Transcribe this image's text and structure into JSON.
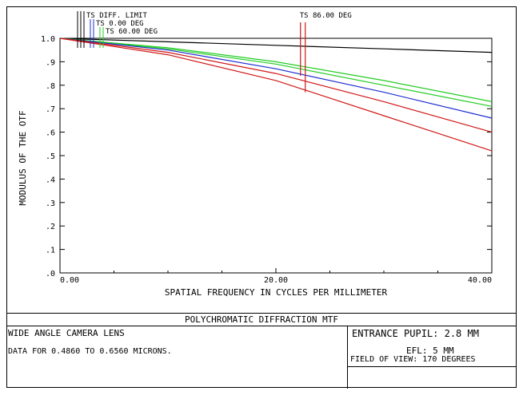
{
  "chart_data": {
    "type": "line",
    "xlabel": "SPATIAL FREQUENCY IN CYCLES PER MILLIMETER",
    "ylabel": "MODULUS OF THE OTF",
    "xlim": [
      0,
      40
    ],
    "ylim": [
      0,
      1.0
    ],
    "x_ticks": [
      "0.00",
      "20.00",
      "40.00"
    ],
    "y_ticks": [
      "1.0",
      ".9",
      ".8",
      ".7",
      ".6",
      ".5",
      ".4",
      ".3",
      ".2",
      ".1",
      ".0"
    ],
    "grid": false,
    "field_labels": [
      "TS DIFF. LIMIT",
      "TS 0.00 DEG",
      "TS 60.00 DEG",
      "TS 86.00 DEG"
    ],
    "series": [
      {
        "name": "TS DIFF. LIMIT",
        "color": "#000000",
        "x": [
          0,
          10,
          20,
          30,
          40
        ],
        "y": [
          1.0,
          0.985,
          0.97,
          0.955,
          0.94
        ]
      },
      {
        "name": "",
        "color": "#22cc22",
        "x": [
          0,
          10,
          20,
          30,
          40
        ],
        "y": [
          1.0,
          0.96,
          0.9,
          0.82,
          0.73
        ]
      },
      {
        "name": "",
        "color": "#22cc22",
        "x": [
          0,
          10,
          20,
          30,
          40
        ],
        "y": [
          1.0,
          0.955,
          0.89,
          0.8,
          0.71
        ]
      },
      {
        "name": "",
        "color": "#1f2fd0",
        "x": [
          0,
          10,
          20,
          30,
          40
        ],
        "y": [
          1.0,
          0.95,
          0.87,
          0.77,
          0.66
        ]
      },
      {
        "name": "",
        "color": "#d01818",
        "x": [
          0,
          10,
          20,
          30,
          40
        ],
        "y": [
          1.0,
          0.94,
          0.85,
          0.73,
          0.6
        ]
      },
      {
        "name": "",
        "color": "#d01818",
        "x": [
          0,
          10,
          20,
          30,
          40
        ],
        "y": [
          1.0,
          0.93,
          0.82,
          0.67,
          0.52
        ]
      }
    ],
    "marker_lines": [
      {
        "label": "TS 86.00 DEG",
        "color": "#d01818",
        "x": 22.5,
        "y_to": [
          0.84,
          0.77
        ]
      }
    ]
  },
  "footer": {
    "title": "POLYCHROMATIC DIFFRACTION MTF",
    "lens_name": "WIDE ANGLE CAMERA LENS",
    "data_range": "DATA FOR 0.4860 TO 0.6560 MICRONS.",
    "entrance_pupil": "ENTRANCE PUPIL: 2.8 MM",
    "efl": "EFL: 5 MM",
    "field_of_view": "FIELD OF VIEW: 170 DEGREES"
  }
}
